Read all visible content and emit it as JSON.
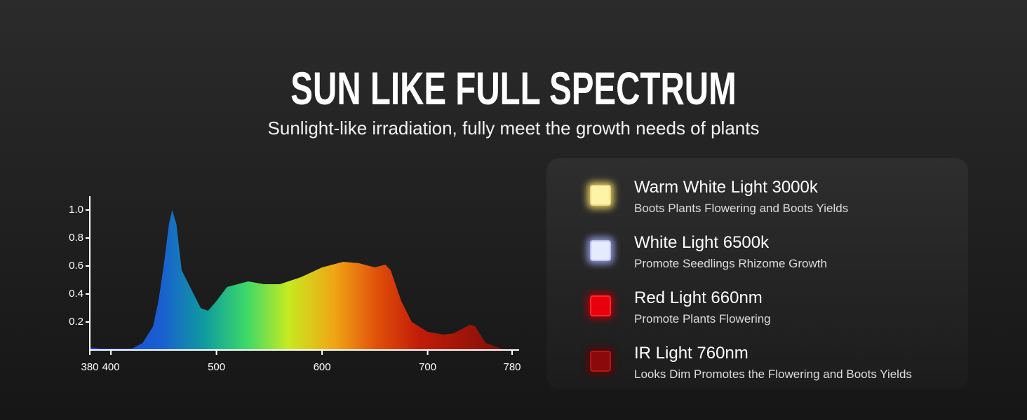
{
  "chart_data": {
    "type": "area",
    "title": "SUN LIKE FULL SPECTRUM",
    "subtitle": "Sunlight-like irradiation, fully meet the growth needs of plants",
    "x": [
      380,
      390,
      400,
      420,
      430,
      440,
      445,
      450,
      455,
      458,
      462,
      467,
      475,
      485,
      492,
      500,
      510,
      520,
      530,
      545,
      560,
      580,
      600,
      620,
      635,
      650,
      660,
      665,
      675,
      685,
      700,
      715,
      725,
      740,
      745,
      755,
      770,
      780
    ],
    "values": [
      0.02,
      0.01,
      0.01,
      0.01,
      0.05,
      0.17,
      0.35,
      0.6,
      0.9,
      1.0,
      0.9,
      0.57,
      0.45,
      0.3,
      0.28,
      0.35,
      0.45,
      0.47,
      0.49,
      0.47,
      0.47,
      0.52,
      0.59,
      0.63,
      0.62,
      0.59,
      0.61,
      0.57,
      0.35,
      0.2,
      0.13,
      0.11,
      0.12,
      0.18,
      0.17,
      0.05,
      0.01,
      0.0
    ],
    "xlim": [
      380,
      780
    ],
    "xticks": [
      380,
      400,
      500,
      600,
      700,
      780
    ],
    "ylim": [
      0,
      1.1
    ],
    "yticks": [
      0.2,
      0.4,
      0.6,
      0.8,
      {
        "value": 1,
        "label": "1.0"
      }
    ]
  },
  "panel": {
    "items": [
      {
        "title": "Warm White Light 3000k",
        "description": "Boots Plants Flowering and Boots Yields"
      },
      {
        "title": "White Light 6500k",
        "description": "Promote Seedlings Rhizome Growth"
      },
      {
        "title": "Red Light 660nm",
        "description": "Promote Plants Flowering"
      },
      {
        "title": "IR Light 760nm",
        "description": "Looks Dim Promotes the Flowering and Boots Yields"
      }
    ]
  }
}
